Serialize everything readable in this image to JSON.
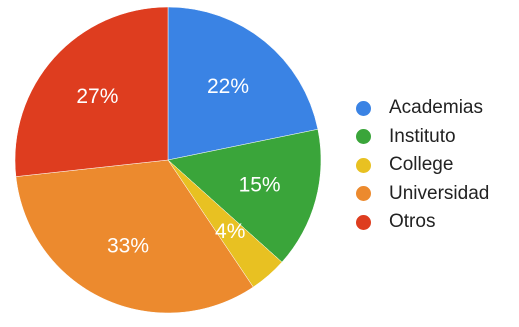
{
  "chart_data": {
    "type": "pie",
    "title": "",
    "slices": [
      {
        "label": "Academias",
        "value": 22,
        "value_label": "22%",
        "color": "#3a83e4"
      },
      {
        "label": "Instituto",
        "value": 15,
        "value_label": "15%",
        "color": "#3aa53a"
      },
      {
        "label": "College",
        "value": 4,
        "value_label": "4%",
        "color": "#e8c122"
      },
      {
        "label": "Universidad",
        "value": 33,
        "value_label": "33%",
        "color": "#ec8a2e"
      },
      {
        "label": "Otros",
        "value": 27,
        "value_label": "27%",
        "color": "#de3d1f"
      }
    ],
    "start_angle": "top",
    "direction": "clockwise",
    "legend_position": "right"
  }
}
